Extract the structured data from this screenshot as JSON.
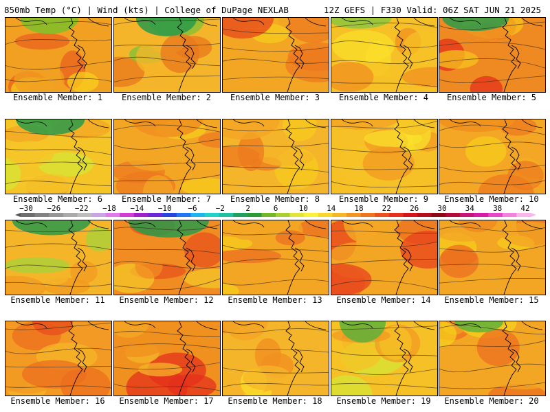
{
  "header": {
    "left": "850mb Temp (°C) | Wind (kts) | College of DuPage NEXLAB",
    "right": "12Z GEFS | F330 Valid: 06Z SAT JUN 21 2025"
  },
  "members": [
    {
      "label": "Ensemble Member: 1",
      "base": "#f2a022",
      "accent": "#e8621d",
      "accent2": "#f7d01c",
      "cold": "#7fbf2a"
    },
    {
      "label": "Ensemble Member: 2",
      "base": "#f5b52a",
      "accent": "#e8781d",
      "accent2": "#7cc236",
      "cold": "#2a9a4a"
    },
    {
      "label": "Ensemble Member: 3",
      "base": "#f3a624",
      "accent": "#ee7a1f",
      "accent2": "#f7cb1c",
      "cold": "#e8521c"
    },
    {
      "label": "Ensemble Member: 4",
      "base": "#f6c126",
      "accent": "#f08f20",
      "accent2": "#f9dd2a",
      "cold": "#8cc63f"
    },
    {
      "label": "Ensemble Member: 5",
      "base": "#ee8a21",
      "accent": "#e4301c",
      "accent2": "#f7c31e",
      "cold": "#2a9a4a"
    },
    {
      "label": "Ensemble Member: 6",
      "base": "#f5c528",
      "accent": "#f3a624",
      "accent2": "#d6e434",
      "cold": "#2a9a4a"
    },
    {
      "label": "Ensemble Member: 7",
      "base": "#f3a624",
      "accent": "#ee7a1f",
      "accent2": "#f7cb1c",
      "cold": "#f08f20"
    },
    {
      "label": "Ensemble Member: 8",
      "base": "#f5b52a",
      "accent": "#ee7a1f",
      "accent2": "#f7cb1c",
      "cold": "#f3a624"
    },
    {
      "label": "Ensemble Member: 9",
      "base": "#f6c126",
      "accent": "#f09a22",
      "accent2": "#f9e02c",
      "cold": "#f3a624"
    },
    {
      "label": "Ensemble Member: 10",
      "base": "#f4a625",
      "accent": "#ee7a1f",
      "accent2": "#f7cb1c",
      "cold": "#f0901f"
    },
    {
      "label": "Ensemble Member: 11",
      "base": "#f4b628",
      "accent": "#f39a22",
      "accent2": "#a6d23a",
      "cold": "#2a9a4a"
    },
    {
      "label": "Ensemble Member: 12",
      "base": "#f08c21",
      "accent": "#e8521c",
      "accent2": "#f5c528",
      "cold": "#2a9a4a"
    },
    {
      "label": "Ensemble Member: 13",
      "base": "#f3a624",
      "accent": "#ec6e1f",
      "accent2": "#f7cb1c",
      "cold": "#f3a624"
    },
    {
      "label": "Ensemble Member: 14",
      "base": "#f3a624",
      "accent": "#e8421c",
      "accent2": "#ec6e1f",
      "cold": "#f3a624"
    },
    {
      "label": "Ensemble Member: 15",
      "base": "#f3a624",
      "accent": "#ec6e1f",
      "accent2": "#f7cb1c",
      "cold": "#f08c21"
    },
    {
      "label": "Ensemble Member: 16",
      "base": "#f29a23",
      "accent": "#ec6e1f",
      "accent2": "#f5b52a",
      "cold": "#e8521c"
    },
    {
      "label": "Ensemble Member: 17",
      "base": "#f0901f",
      "accent": "#e4301c",
      "accent2": "#f5b52a",
      "cold": "#f3a624"
    },
    {
      "label": "Ensemble Member: 18",
      "base": "#f5b52a",
      "accent": "#f08f20",
      "accent2": "#f9dd2a",
      "cold": "#f3a624"
    },
    {
      "label": "Ensemble Member: 19",
      "base": "#f6c126",
      "accent": "#f09a22",
      "accent2": "#d6e434",
      "cold": "#5fb13a"
    },
    {
      "label": "Ensemble Member: 20",
      "base": "#f3a624",
      "accent": "#ec6e1f",
      "accent2": "#f7d01c",
      "cold": "#5fb13a"
    }
  ],
  "colorbar": {
    "ticks": [
      "−30",
      "−26",
      "−22",
      "−18",
      "−14",
      "−10",
      "−6",
      "−2",
      "2",
      "6",
      "10",
      "14",
      "18",
      "22",
      "26",
      "30",
      "34",
      "38",
      "42"
    ],
    "colors": [
      "#6e6e6e",
      "#828282",
      "#969696",
      "#aaaaaa",
      "#bdbdbd",
      "#c8a6e6",
      "#e07ae8",
      "#d23cd2",
      "#a020c8",
      "#6a28d6",
      "#2845e0",
      "#1e78f0",
      "#1eb4f0",
      "#20d2c8",
      "#22bfa0",
      "#21a060",
      "#2a9a3a",
      "#74b52a",
      "#a9d033",
      "#e2e43a",
      "#f9f13a",
      "#f9d72a",
      "#f6b628",
      "#f29524",
      "#ee7420",
      "#ea521c",
      "#e4301c",
      "#d4161c",
      "#b40e1c",
      "#8c0a14",
      "#b40a3a",
      "#c81478",
      "#d81aa8",
      "#e646c8",
      "#f282dc",
      "#f9b6ea"
    ]
  }
}
